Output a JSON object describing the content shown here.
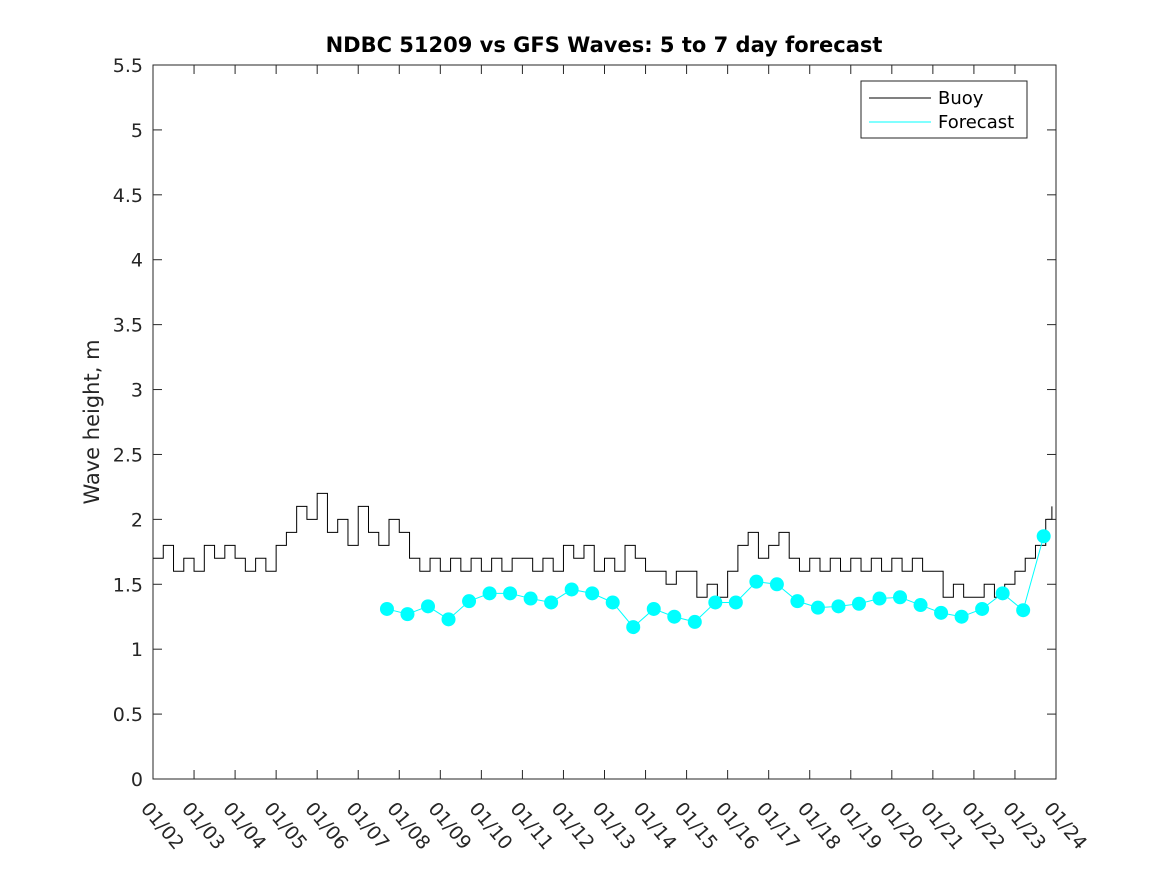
{
  "chart_data": {
    "type": "line",
    "title": "NDBC 51209 vs GFS Waves: 5 to 7 day forecast",
    "xlabel": "",
    "ylabel": "Wave height, m",
    "xlim": [
      0,
      22
    ],
    "ylim": [
      0,
      5.5
    ],
    "yticks": [
      0,
      0.5,
      1,
      1.5,
      2,
      2.5,
      3,
      3.5,
      4,
      4.5,
      5,
      5.5
    ],
    "ytick_labels": [
      "0",
      "0.5",
      "1",
      "1.5",
      "2",
      "2.5",
      "3",
      "3.5",
      "4",
      "4.5",
      "5",
      "5.5"
    ],
    "xtick_labels": [
      "01/02",
      "01/03",
      "01/04",
      "01/05",
      "01/06",
      "01/07",
      "01/08",
      "01/09",
      "01/10",
      "01/11",
      "01/12",
      "01/13",
      "01/14",
      "01/15",
      "01/16",
      "01/17",
      "01/18",
      "01/19",
      "01/20",
      "01/21",
      "01/22",
      "01/23",
      "01/24"
    ],
    "legend": {
      "position": "top-right",
      "entries": [
        "Buoy",
        "Forecast"
      ]
    },
    "colors": {
      "buoy": "#000000",
      "forecast": "#00ffff",
      "axes": "#262626"
    },
    "series": [
      {
        "name": "Buoy",
        "x": [
          0,
          0.25,
          0.5,
          0.75,
          1,
          1.25,
          1.5,
          1.75,
          2,
          2.25,
          2.5,
          2.75,
          3,
          3.25,
          3.5,
          3.75,
          4,
          4.25,
          4.5,
          4.75,
          5,
          5.25,
          5.5,
          5.75,
          6,
          6.25,
          6.5,
          6.75,
          7,
          7.25,
          7.5,
          7.75,
          8,
          8.25,
          8.5,
          8.75,
          9,
          9.25,
          9.5,
          9.75,
          10,
          10.25,
          10.5,
          10.75,
          11,
          11.25,
          11.5,
          11.75,
          12,
          12.25,
          12.5,
          12.75,
          13,
          13.25,
          13.5,
          13.75,
          14,
          14.25,
          14.5,
          14.75,
          15,
          15.25,
          15.5,
          15.75,
          16,
          16.25,
          16.5,
          16.75,
          17,
          17.25,
          17.5,
          17.75,
          18,
          18.25,
          18.5,
          18.75,
          19,
          19.25,
          19.5,
          19.75,
          20,
          20.25,
          20.5,
          20.75,
          21,
          21.25,
          21.5,
          21.75,
          21.9
        ],
        "values": [
          1.7,
          1.8,
          1.6,
          1.7,
          1.6,
          1.8,
          1.7,
          1.8,
          1.7,
          1.6,
          1.7,
          1.6,
          1.8,
          1.9,
          2.1,
          2.0,
          2.2,
          1.9,
          2.0,
          1.8,
          2.1,
          1.9,
          1.8,
          2.0,
          1.9,
          1.7,
          1.6,
          1.7,
          1.6,
          1.7,
          1.6,
          1.7,
          1.6,
          1.7,
          1.6,
          1.7,
          1.7,
          1.6,
          1.7,
          1.6,
          1.8,
          1.7,
          1.8,
          1.6,
          1.7,
          1.6,
          1.8,
          1.7,
          1.6,
          1.6,
          1.5,
          1.6,
          1.6,
          1.4,
          1.5,
          1.4,
          1.6,
          1.8,
          1.9,
          1.7,
          1.8,
          1.9,
          1.7,
          1.6,
          1.7,
          1.6,
          1.7,
          1.6,
          1.7,
          1.6,
          1.7,
          1.6,
          1.7,
          1.6,
          1.7,
          1.6,
          1.6,
          1.4,
          1.5,
          1.4,
          1.4,
          1.5,
          1.4,
          1.5,
          1.6,
          1.7,
          1.8,
          2.0,
          2.1
        ]
      },
      {
        "name": "Forecast",
        "x": [
          5.7,
          6.2,
          6.7,
          7.2,
          7.7,
          8.2,
          8.7,
          9.2,
          9.7,
          10.2,
          10.7,
          11.2,
          11.7,
          12.2,
          12.7,
          13.2,
          13.7,
          14.2,
          14.7,
          15.2,
          15.7,
          16.2,
          16.7,
          17.2,
          17.7,
          18.2,
          18.7,
          19.2,
          19.7,
          20.2,
          20.7,
          21.2,
          21.7
        ],
        "values": [
          1.31,
          1.27,
          1.33,
          1.23,
          1.37,
          1.43,
          1.43,
          1.39,
          1.36,
          1.46,
          1.43,
          1.36,
          1.17,
          1.31,
          1.25,
          1.21,
          1.36,
          1.36,
          1.52,
          1.5,
          1.37,
          1.32,
          1.33,
          1.35,
          1.39,
          1.4,
          1.34,
          1.28,
          1.25,
          1.31,
          1.43,
          1.3,
          1.87
        ]
      }
    ]
  }
}
